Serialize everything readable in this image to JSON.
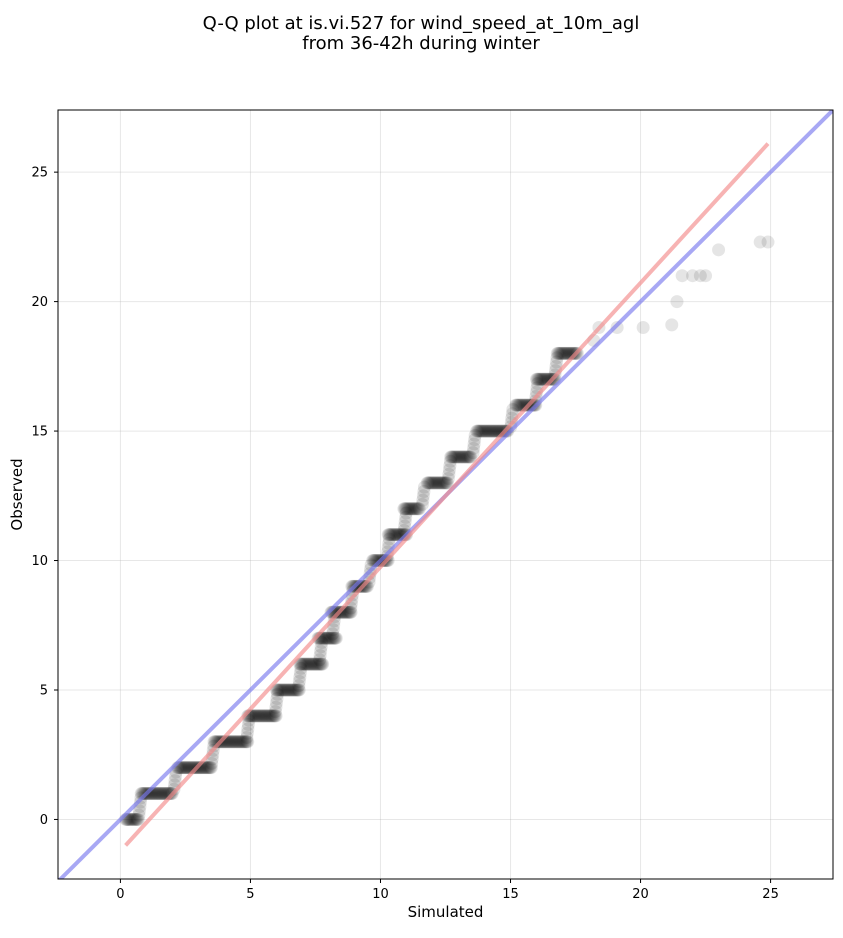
{
  "chart_data": {
    "type": "scatter",
    "title_lines": [
      "Q-Q plot at is.vi.527 for wind_speed_at_10m_agl",
      "from 36-42h during winter"
    ],
    "xlabel": "Simulated",
    "ylabel": "Observed",
    "xlim": [
      -2.4,
      27.4
    ],
    "ylim": [
      -2.3,
      27.4
    ],
    "xticks": [
      0,
      5,
      10,
      15,
      20,
      25
    ],
    "yticks": [
      0,
      5,
      10,
      15,
      20,
      25
    ],
    "xtick_labels": [
      "0",
      "5",
      "10",
      "15",
      "20",
      "25"
    ],
    "ytick_labels": [
      "0",
      "5",
      "10",
      "15",
      "20",
      "25"
    ],
    "grid": true,
    "point_color": "#000000",
    "step_runs": [
      [
        0.2,
        0.7,
        0
      ],
      [
        0.8,
        2.0,
        1
      ],
      [
        2.2,
        3.5,
        2
      ],
      [
        3.6,
        4.9,
        3
      ],
      [
        4.9,
        6.0,
        4
      ],
      [
        6.0,
        6.9,
        5
      ],
      [
        6.9,
        7.8,
        6
      ],
      [
        7.6,
        8.3,
        7
      ],
      [
        8.1,
        8.9,
        8
      ],
      [
        8.9,
        9.5,
        9
      ],
      [
        9.7,
        10.3,
        10
      ],
      [
        10.3,
        11.0,
        11
      ],
      [
        10.9,
        11.5,
        12
      ],
      [
        11.8,
        12.6,
        13
      ],
      [
        12.7,
        13.5,
        14
      ],
      [
        13.7,
        14.9,
        15
      ],
      [
        15.2,
        16.0,
        16
      ],
      [
        16.0,
        16.7,
        17
      ],
      [
        16.8,
        17.6,
        18
      ]
    ],
    "tail_points": [
      [
        18.2,
        18.5
      ],
      [
        18.4,
        19
      ],
      [
        19.1,
        19
      ],
      [
        20.1,
        19
      ],
      [
        21.2,
        19.1
      ],
      [
        21.4,
        20
      ],
      [
        21.6,
        21
      ],
      [
        22.0,
        21
      ],
      [
        22.3,
        21
      ],
      [
        22.5,
        21
      ],
      [
        23.0,
        22
      ],
      [
        24.6,
        22.3
      ],
      [
        24.9,
        22.3
      ]
    ],
    "reference_lines": [
      {
        "color": "#7a7aee",
        "points": [
          [
            -2.4,
            -2.4
          ],
          [
            27.4,
            27.4
          ]
        ]
      },
      {
        "color": "#f28b8b",
        "points": [
          [
            0.2,
            -1.0
          ],
          [
            24.9,
            26.1
          ]
        ]
      }
    ]
  }
}
